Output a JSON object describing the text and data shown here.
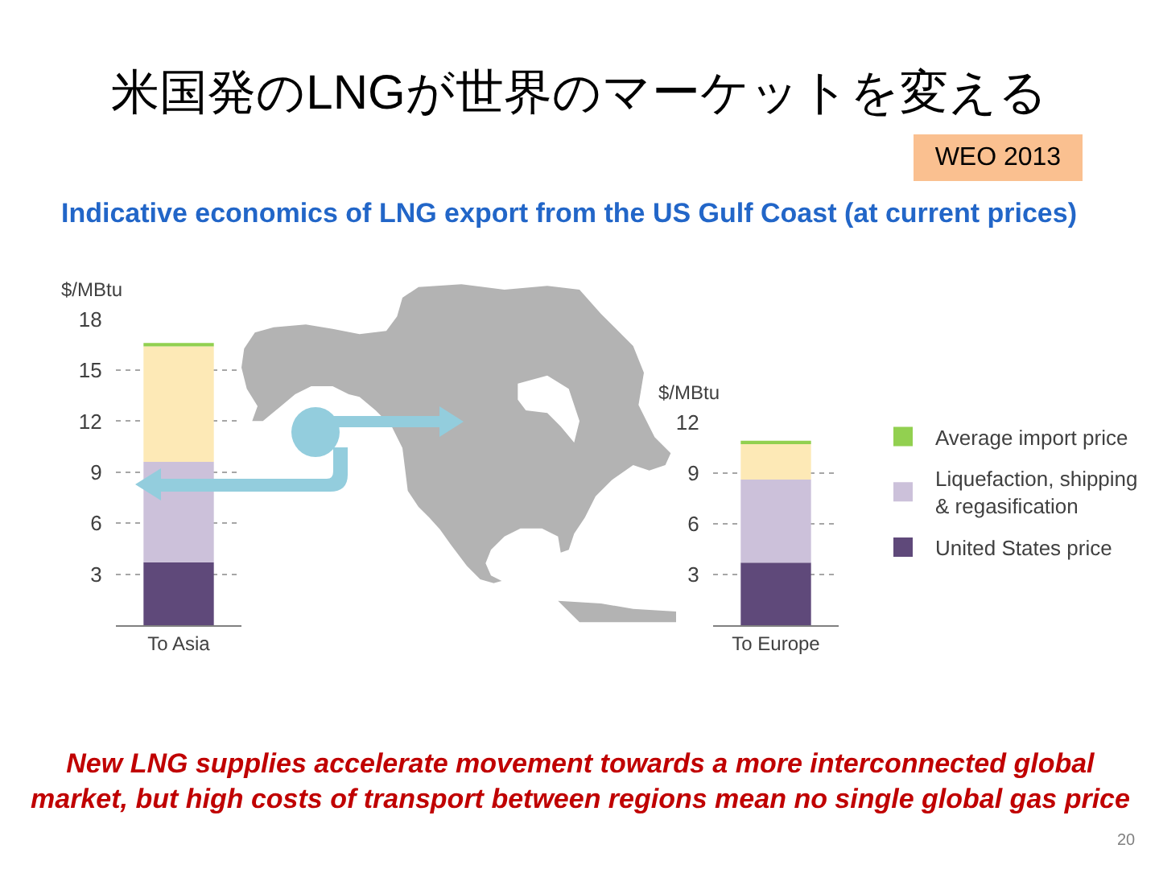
{
  "chart_data": [
    {
      "type": "bar",
      "title": "米国発のLNGが世界のマーケットを変える",
      "subtitle": "Indicative economics of LNG export from the US Gulf Coast (at current prices)",
      "ylabel": "$/MBtu",
      "categories": [
        "To Asia"
      ],
      "stacked": true,
      "series": [
        {
          "color": "#5f497a",
          "values": [
            3.7
          ]
        },
        {
          "color": "#ccc1da",
          "values": [
            5.9
          ]
        },
        {
          "color": "#fde9b6",
          "values": [
            6.8
          ]
        },
        {
          "color": "#92d050",
          "values": [
            0.2
          ]
        }
      ],
      "ylim": [
        0,
        18
      ],
      "yticks": [
        3,
        6,
        9,
        12,
        15,
        18
      ],
      "grid": "y",
      "annotations": [
        "WEO 2013",
        "New LNG supplies accelerate movement towards a more interconnected global market, but high costs of transport between regions mean no single global gas price",
        "20"
      ]
    },
    {
      "type": "bar",
      "ylabel": "$/MBtu",
      "categories": [
        "To Europe"
      ],
      "stacked": true,
      "series": [
        {
          "name": "United States price",
          "color": "#5f497a",
          "values": [
            3.7
          ]
        },
        {
          "name": "Liquefaction, shipping & regasification",
          "color": "#ccc1da",
          "values": [
            4.9
          ]
        },
        {
          "color": "#fde9b6",
          "values": [
            2.1
          ]
        },
        {
          "name": "Average import price",
          "color": "#92d050",
          "values": [
            0.2
          ]
        }
      ],
      "ylim": [
        0,
        12
      ],
      "yticks": [
        3,
        6,
        9,
        12
      ],
      "grid": "y",
      "legend": "right"
    }
  ]
}
